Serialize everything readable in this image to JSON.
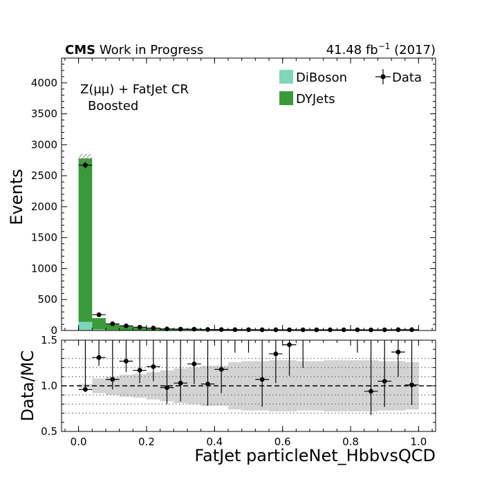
{
  "header": {
    "experiment": "CMS",
    "status": "Work in Progress",
    "lumi": "41.48 fb",
    "lumi_exp": "−1",
    "year": "(2017)"
  },
  "region": {
    "line1": "Z(μμ) + FatJet CR",
    "line2": "Boosted"
  },
  "colors": {
    "DiBoson": "#7fd6b9",
    "DYJets": "#3a9a3a",
    "data": "#000000",
    "unc_band": "#d3d3d3"
  },
  "chart_data": [
    {
      "type": "bar",
      "stacked": true,
      "xlabel": "FatJet particleNet_HbbvsQCD",
      "ylabel": "Events",
      "xlim": [
        -0.05,
        1.05
      ],
      "ylim": [
        0,
        4400
      ],
      "xticks": [
        "0.0",
        "0.2",
        "0.4",
        "0.6",
        "0.8",
        "1.0"
      ],
      "xtick_values": [
        0,
        0.2,
        0.4,
        0.6,
        0.8,
        1.0
      ],
      "yticks": [
        "0",
        "500",
        "1000",
        "1500",
        "2000",
        "2500",
        "3000",
        "3500",
        "4000"
      ],
      "ytick_values": [
        0,
        500,
        1000,
        1500,
        2000,
        2500,
        3000,
        3500,
        4000
      ],
      "bin_edges": [
        0,
        0.04,
        0.08,
        0.12,
        0.16,
        0.2,
        0.24,
        0.28,
        0.32,
        0.36,
        0.4,
        0.44,
        0.48,
        0.52,
        0.56,
        0.6,
        0.64,
        0.68,
        0.72,
        0.76,
        0.8,
        0.84,
        0.88,
        0.92,
        0.96,
        1.0
      ],
      "series": [
        {
          "name": "DiBoson",
          "values": [
            140,
            20,
            8,
            5,
            4,
            3,
            2,
            2,
            2,
            2,
            1,
            1,
            1,
            1,
            1,
            1,
            1,
            1,
            1,
            1,
            1,
            1,
            1,
            1,
            1
          ]
        },
        {
          "name": "DYJets",
          "values": [
            2640,
            180,
            95,
            62,
            40,
            30,
            22,
            18,
            15,
            14,
            13,
            12,
            11,
            11,
            10,
            10,
            10,
            10,
            10,
            10,
            10,
            10,
            10,
            10,
            12
          ]
        }
      ],
      "data": {
        "name": "Data",
        "x": [
          0.02,
          0.06,
          0.1,
          0.14,
          0.18,
          0.22,
          0.26,
          0.3,
          0.34,
          0.38,
          0.42,
          0.46,
          0.5,
          0.54,
          0.58,
          0.62,
          0.66,
          0.7,
          0.74,
          0.78,
          0.82,
          0.86,
          0.9,
          0.94,
          0.98
        ],
        "y": [
          2670,
          255,
          108,
          75,
          53,
          40,
          25,
          22,
          21,
          16,
          15,
          14,
          13,
          12,
          12,
          11,
          11,
          11,
          11,
          11,
          11,
          10,
          11,
          13,
          13
        ]
      },
      "legend": [
        "DiBoson",
        "DYJets",
        "Data"
      ],
      "legend_position": "top-right"
    },
    {
      "type": "scatter",
      "xlabel": "FatJet particleNet_HbbvsQCD",
      "ylabel": "Data/MC",
      "xlim": [
        -0.05,
        1.05
      ],
      "ylim": [
        0.5,
        1.5
      ],
      "yticks": [
        "0.5",
        "1.0",
        "1.5"
      ],
      "ytick_values": [
        0.5,
        1.0,
        1.5
      ],
      "reference_line": 1.0,
      "dotted_grid": [
        0.7,
        0.8,
        0.9,
        1.1,
        1.2,
        1.3
      ],
      "x": [
        0.02,
        0.06,
        0.1,
        0.14,
        0.18,
        0.22,
        0.26,
        0.3,
        0.34,
        0.38,
        0.42,
        0.54,
        0.58,
        0.62,
        0.86,
        0.9,
        0.94,
        0.98
      ],
      "y": [
        0.96,
        1.31,
        1.07,
        1.27,
        1.17,
        1.21,
        0.98,
        1.03,
        1.24,
        1.02,
        1.18,
        1.07,
        1.35,
        1.45,
        0.94,
        1.05,
        1.37,
        1.01
      ],
      "yerr": [
        0.02,
        0.09,
        0.11,
        0.12,
        0.14,
        0.16,
        0.18,
        0.2,
        0.22,
        0.24,
        0.26,
        0.3,
        0.32,
        0.34,
        0.26,
        0.28,
        0.27,
        0.22
      ],
      "unc_band": {
        "bin_edges": [
          0,
          0.04,
          0.08,
          0.12,
          0.16,
          0.2,
          0.24,
          0.28,
          0.32,
          0.36,
          0.4,
          0.44,
          0.48,
          0.52,
          0.56,
          0.6,
          0.64,
          0.68,
          0.72,
          0.76,
          0.8,
          0.84,
          0.88,
          0.92,
          0.96,
          1.0
        ],
        "half_width": [
          0.02,
          0.08,
          0.1,
          0.12,
          0.13,
          0.15,
          0.17,
          0.19,
          0.2,
          0.22,
          0.22,
          0.26,
          0.27,
          0.27,
          0.28,
          0.28,
          0.27,
          0.27,
          0.28,
          0.28,
          0.28,
          0.28,
          0.27,
          0.27,
          0.26
        ]
      }
    }
  ]
}
